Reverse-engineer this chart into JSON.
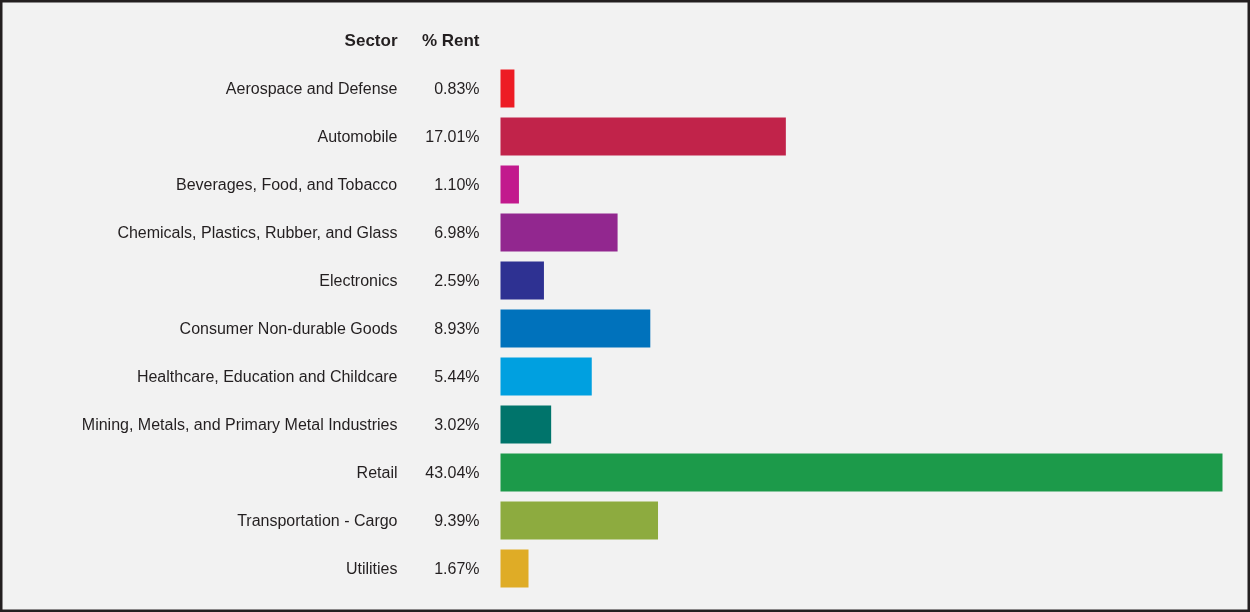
{
  "chart_data": {
    "type": "bar",
    "orientation": "horizontal",
    "ylabel": "Sector",
    "xlabel": "% Rent",
    "categories": [
      "Aerospace and Defense",
      "Automobile",
      "Beverages, Food, and Tobacco",
      "Chemicals, Plastics, Rubber, and Glass",
      "Electronics",
      "Consumer Non-durable Goods",
      "Healthcare, Education and Childcare",
      "Mining, Metals, and Primary Metal Industries",
      "Retail",
      "Transportation - Cargo",
      "Utilities"
    ],
    "values": [
      0.83,
      17.01,
      1.1,
      6.98,
      2.59,
      8.93,
      5.44,
      3.02,
      43.04,
      9.39,
      1.67
    ],
    "value_labels": [
      "0.83%",
      "17.01%",
      "1.10%",
      "6.98%",
      "2.59%",
      "8.93%",
      "5.44%",
      "3.02%",
      "43.04%",
      "9.39%",
      "1.67%"
    ],
    "colors": [
      "#ed1c24",
      "#c1234a",
      "#c2198d",
      "#92278f",
      "#2e3192",
      "#0072bc",
      "#00a0e0",
      "#00746b",
      "#1c9a4a",
      "#8dab3f",
      "#dfac26"
    ],
    "grid": false
  }
}
